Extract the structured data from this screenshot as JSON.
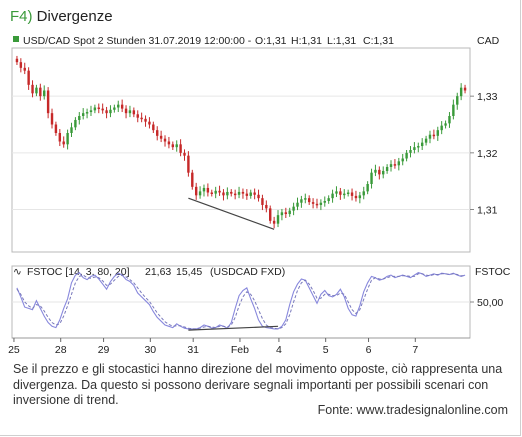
{
  "figure": {
    "number": "F4)",
    "title": "Divergenze"
  },
  "price_header": {
    "instrument": "USD/CAD Spot 2 Stunden",
    "datetime": "31.07.2019 12:00:00 -",
    "ohlc": [
      {
        "text": "O:1,31",
        "color": "#e03030"
      },
      {
        "text": "H:1,31",
        "color": "#222222"
      },
      {
        "text": "L:1,31",
        "color": "#222222"
      },
      {
        "text": "C:1,31",
        "color": "#3a9a3a"
      }
    ],
    "axis_title": "CAD"
  },
  "stoch_header": {
    "name": "FSTOC [14, 3, 80, 20]",
    "v1": "21,63",
    "v2": "15,45",
    "symbol": "(USDCAD FXD)",
    "axis_title": "FSTOC"
  },
  "caption": "Se il prezzo e gli stocastici hanno direzione del movimento opposte, ciò rappresenta una divergenza. Da questo si possono derivare segnali importanti per possibili scenari con inversione di trend.",
  "source": "Fonte: www.tradesignalonline.com",
  "colors": {
    "up": "#3a9a3a",
    "down": "#c62828",
    "k_line": "#8888dd",
    "d_line": "#7777bb"
  },
  "chart_data": [
    {
      "type": "candlestick",
      "ylabel": "CAD",
      "ylim": [
        1.3025,
        1.3385
      ],
      "y_ticks": [
        "1,33",
        "1,32",
        "1,31"
      ],
      "y_tick_values": [
        1.33,
        1.32,
        1.31
      ],
      "x_ticks": [
        "25",
        "28",
        "29",
        "30",
        "31",
        "Feb",
        "4",
        "5",
        "6",
        "7"
      ],
      "x_tick_index": [
        0,
        12,
        23,
        35,
        46,
        58,
        68,
        80,
        91,
        103
      ],
      "n_bars": 116,
      "close": [
        1.336,
        1.335,
        1.3345,
        1.332,
        1.3305,
        1.3315,
        1.33,
        1.331,
        1.327,
        1.325,
        1.3235,
        1.322,
        1.3215,
        1.3235,
        1.3245,
        1.3258,
        1.3265,
        1.327,
        1.3272,
        1.3275,
        1.328,
        1.3278,
        1.3275,
        1.327,
        1.3276,
        1.328,
        1.3285,
        1.3278,
        1.327,
        1.3275,
        1.3268,
        1.3262,
        1.326,
        1.3255,
        1.325,
        1.324,
        1.323,
        1.3225,
        1.322,
        1.3215,
        1.321,
        1.3215,
        1.32,
        1.3195,
        1.3165,
        1.314,
        1.3125,
        1.3132,
        1.3138,
        1.313,
        1.3128,
        1.3133,
        1.313,
        1.3125,
        1.3131,
        1.3128,
        1.3126,
        1.3131,
        1.3128,
        1.3124,
        1.313,
        1.3126,
        1.312,
        1.3108,
        1.3102,
        1.308,
        1.3075,
        1.309,
        1.3095,
        1.3092,
        1.3098,
        1.3105,
        1.3112,
        1.3118,
        1.312,
        1.3113,
        1.311,
        1.3108,
        1.3112,
        1.3115,
        1.312,
        1.3128,
        1.3132,
        1.3126,
        1.3128,
        1.313,
        1.3124,
        1.312,
        1.3125,
        1.3132,
        1.3145,
        1.3165,
        1.317,
        1.3162,
        1.3168,
        1.3175,
        1.318,
        1.3178,
        1.3185,
        1.319,
        1.32,
        1.3205,
        1.321,
        1.3212,
        1.3218,
        1.3225,
        1.3232,
        1.323,
        1.324,
        1.3248,
        1.3252,
        1.3265,
        1.3285,
        1.33,
        1.3315,
        1.331
      ]
    },
    {
      "type": "line",
      "ylabel": "FSTOC",
      "ylim": [
        0,
        100
      ],
      "y_ticks": [
        "50,00"
      ],
      "y_tick_values": [
        50
      ],
      "series": [
        {
          "values": [
            72,
            58,
            42,
            40,
            38,
            52,
            40,
            28,
            18,
            12,
            10,
            22,
            40,
            55,
            80,
            92,
            96,
            88,
            85,
            90,
            92,
            86,
            78,
            70,
            82,
            90,
            95,
            92,
            85,
            82,
            76,
            64,
            58,
            52,
            46,
            35,
            26,
            20,
            14,
            12,
            10,
            16,
            12,
            9,
            8,
            8,
            8,
            10,
            14,
            12,
            9,
            10,
            14,
            12,
            9,
            18,
            40,
            60,
            68,
            72,
            55,
            40,
            22,
            12,
            10,
            9,
            8,
            8,
            12,
            22,
            46,
            66,
            78,
            86,
            84,
            72,
            60,
            48,
            62,
            68,
            60,
            58,
            62,
            70,
            58,
            40,
            30,
            28,
            44,
            66,
            80,
            90,
            88,
            84,
            86,
            90,
            92,
            88,
            90,
            92,
            90,
            88,
            92,
            96,
            94,
            90,
            92,
            94,
            92,
            95,
            94,
            93,
            95,
            92,
            90,
            92
          ]
        },
        {
          "values": [
            70,
            62,
            50,
            44,
            40,
            46,
            44,
            36,
            26,
            18,
            14,
            16,
            28,
            44,
            62,
            80,
            90,
            92,
            88,
            87,
            89,
            88,
            83,
            76,
            78,
            84,
            90,
            92,
            89,
            85,
            80,
            72,
            64,
            57,
            51,
            42,
            33,
            26,
            19,
            15,
            12,
            13,
            13,
            11,
            9,
            8,
            8,
            9,
            11,
            12,
            11,
            10,
            12,
            12,
            11,
            14,
            26,
            44,
            58,
            66,
            62,
            52,
            38,
            24,
            14,
            10,
            9,
            8,
            10,
            16,
            30,
            50,
            68,
            80,
            84,
            78,
            68,
            56,
            56,
            62,
            62,
            60,
            60,
            64,
            62,
            50,
            38,
            32,
            38,
            54,
            70,
            84,
            88,
            86,
            86,
            88,
            90,
            90,
            90,
            91,
            91,
            90,
            90,
            94,
            94,
            92,
            91,
            93,
            93,
            94,
            94,
            93,
            94,
            93,
            91,
            91
          ]
        }
      ],
      "divergence_note": "two trendlines: price lows declining, stochastic lows rising"
    }
  ]
}
